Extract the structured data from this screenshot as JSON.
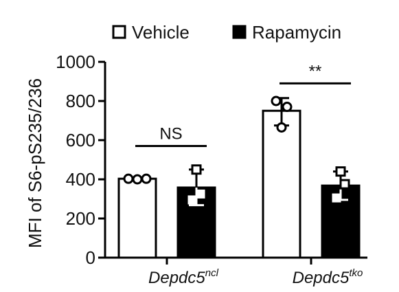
{
  "chart_data": {
    "type": "bar",
    "ylabel": "MFI of S6-pS235/236",
    "ylim": [
      0,
      1000
    ],
    "yticks": [
      "0",
      "200",
      "400",
      "600",
      "800",
      "1000"
    ],
    "ytick_values": [
      0,
      200,
      400,
      600,
      800,
      1000
    ],
    "categories": [
      {
        "base": "Depdc5",
        "sup": "ncl"
      },
      {
        "base": "Depdc5",
        "sup": "tko"
      }
    ],
    "series": [
      {
        "name": "Vehicle",
        "color": "#ffffff",
        "values": [
          403,
          750
        ],
        "error_upper": [
          403,
          815
        ],
        "error_lower": [
          403,
          675
        ],
        "points": [
          [
            403,
            400,
            403
          ],
          [
            800,
            770,
            665
          ]
        ]
      },
      {
        "name": "Rapamycin",
        "color": "#000000",
        "values": [
          358,
          368
        ],
        "error_upper": [
          450,
          440
        ],
        "error_lower": [
          268,
          295
        ],
        "points": [
          [
            450,
            325,
            295
          ],
          [
            440,
            375,
            305
          ]
        ]
      }
    ],
    "significance": [
      {
        "label": "NS",
        "category_index": 0,
        "y": 570
      },
      {
        "label": "**",
        "category_index": 1,
        "y": 890
      }
    ],
    "legend_position": "top"
  }
}
